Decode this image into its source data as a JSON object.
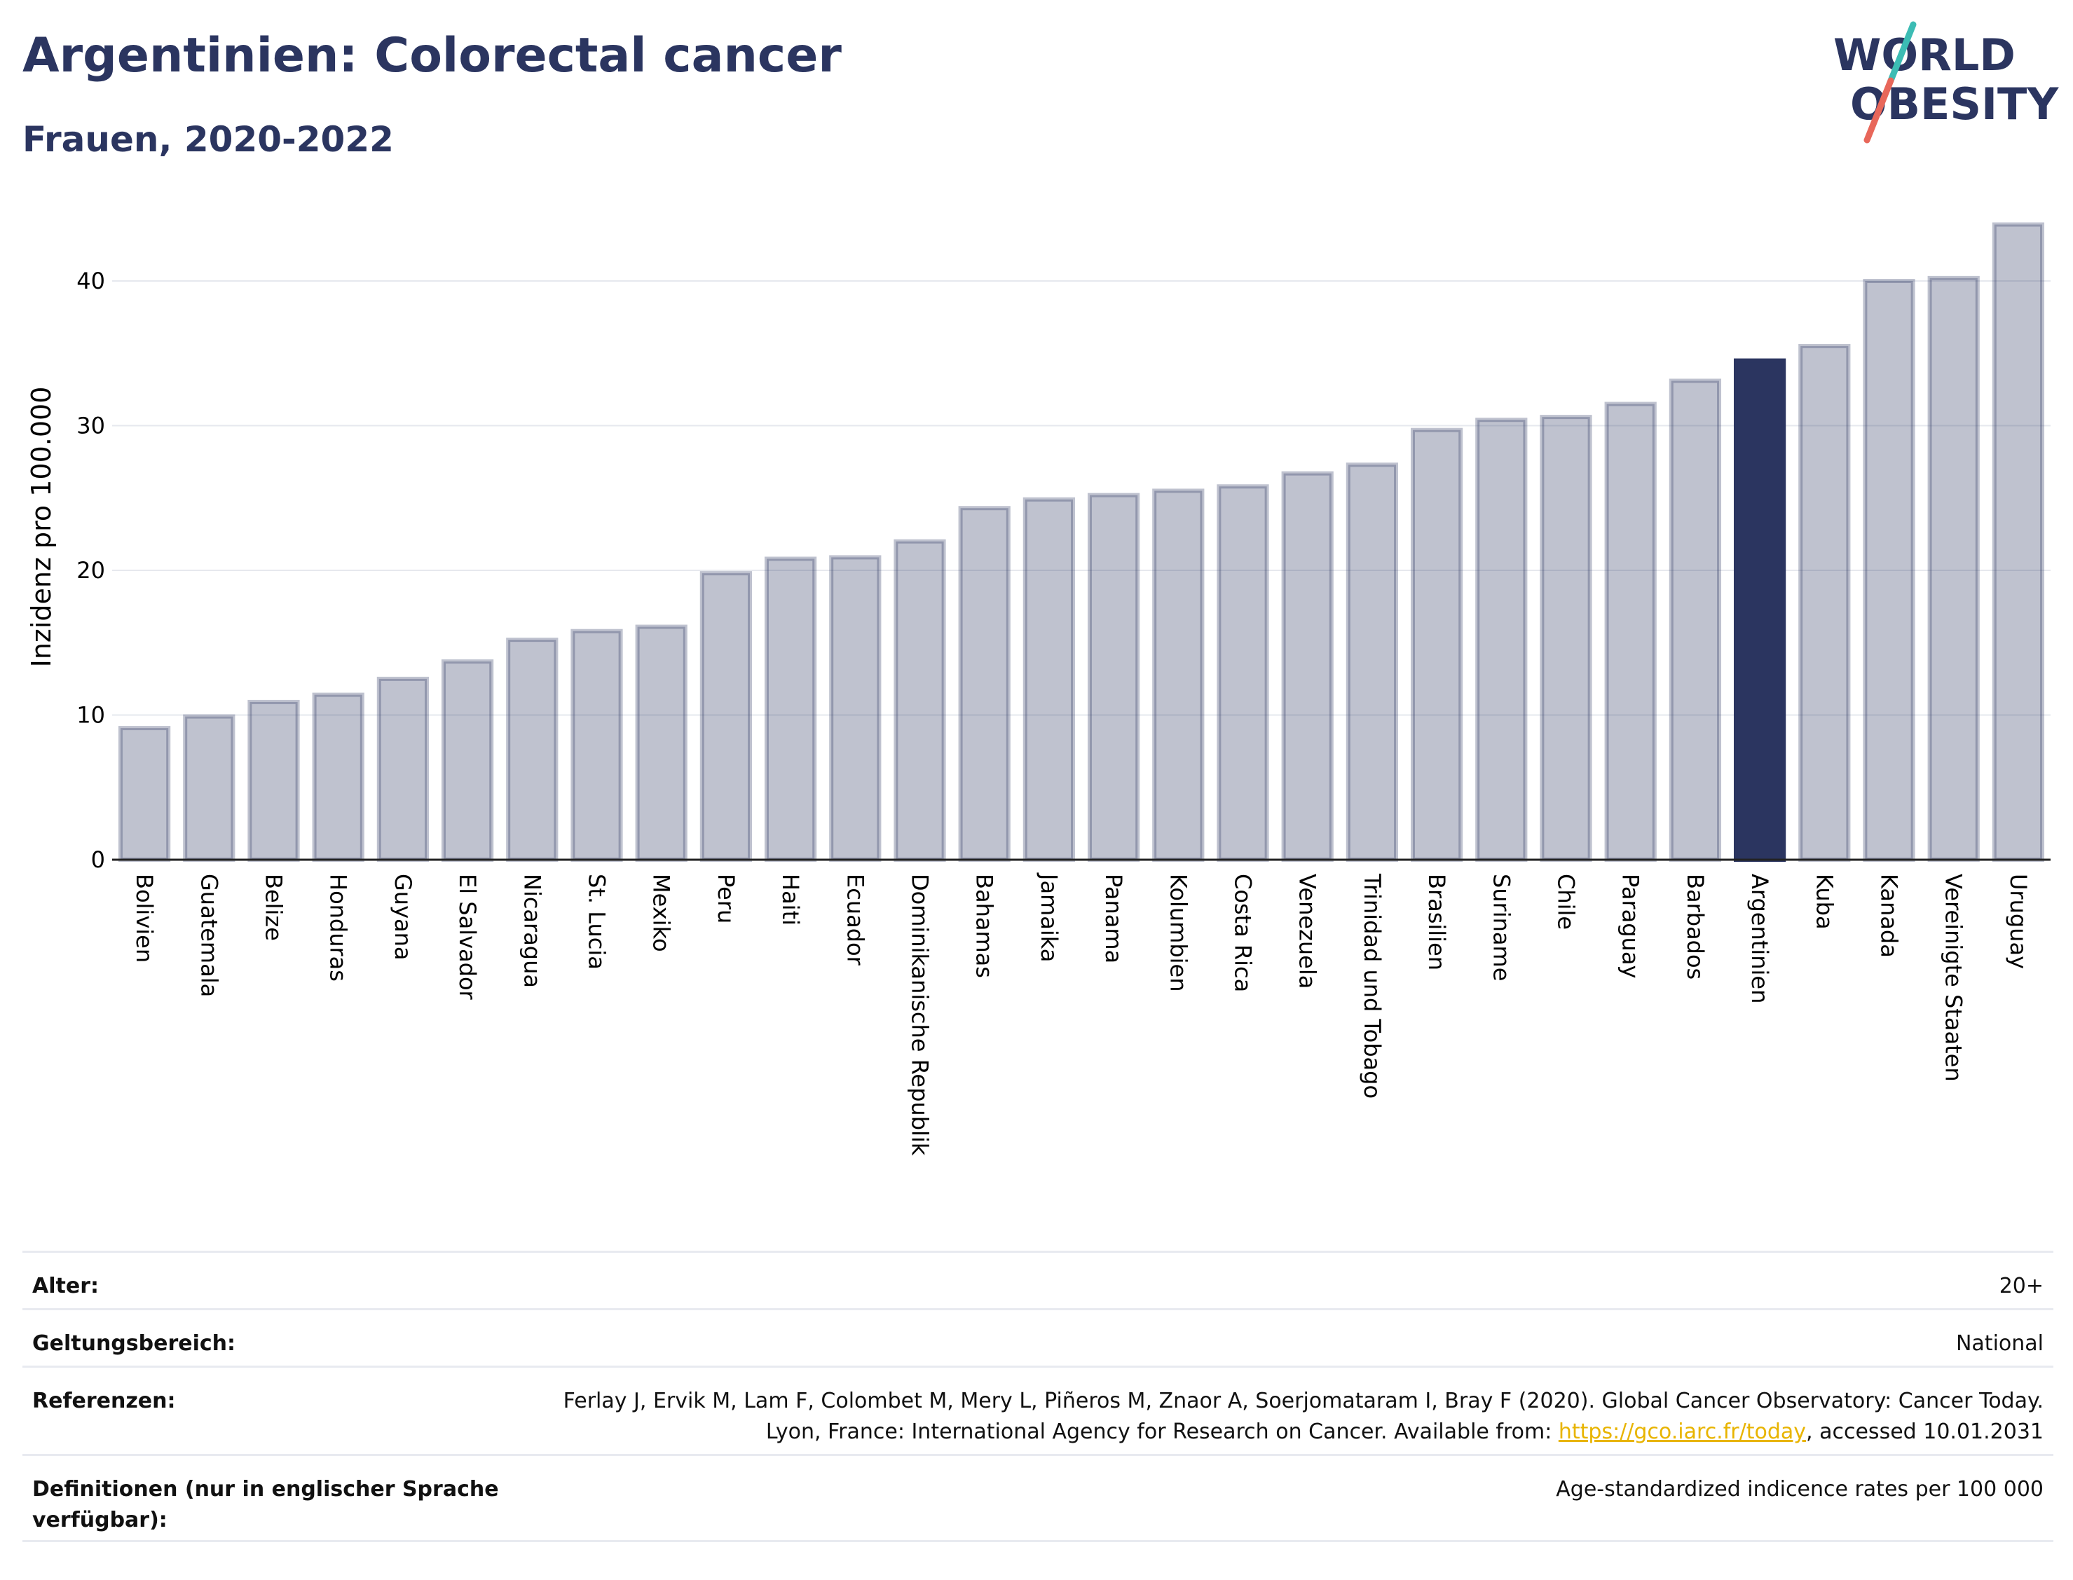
{
  "header": {
    "title": "Argentinien: Colorectal cancer",
    "subtitle": "Frauen, 2020-2022",
    "logo_line1": "WORLD",
    "logo_line2": "OBESITY"
  },
  "colors": {
    "bar": "#2b3560",
    "bar_highlight": "#2b3560",
    "logo_slash_teal": "#3cbcb4",
    "logo_slash_red": "#e8675a",
    "link": "#e8b400"
  },
  "chart_data": {
    "type": "bar",
    "title": "Argentinien: Colorectal cancer",
    "subtitle": "Frauen, 2020-2022",
    "ylabel": "Inzidenz pro 100.000",
    "xlabel": "",
    "ylim": [
      0,
      44
    ],
    "yticks": [
      0,
      10,
      20,
      30,
      40
    ],
    "grid": true,
    "highlight": "Argentinien",
    "categories": [
      "Bolivien",
      "Guatemala",
      "Belize",
      "Honduras",
      "Guyana",
      "El Salvador",
      "Nicaragua",
      "St. Lucia",
      "Mexiko",
      "Peru",
      "Haiti",
      "Ecuador",
      "Dominikanische Republik",
      "Bahamas",
      "Jamaika",
      "Panama",
      "Kolumbien",
      "Costa Rica",
      "Venezuela",
      "Trinidad und Tobago",
      "Brasilien",
      "Suriname",
      "Chile",
      "Paraguay",
      "Barbados",
      "Argentinien",
      "Kuba",
      "Kanada",
      "Vereinigte Staaten",
      "Uruguay"
    ],
    "values": [
      9.1,
      9.9,
      10.9,
      11.4,
      12.5,
      13.7,
      15.2,
      15.8,
      16.1,
      19.8,
      20.8,
      20.9,
      22.0,
      24.3,
      24.9,
      25.2,
      25.5,
      25.8,
      26.7,
      27.3,
      29.7,
      30.4,
      30.6,
      31.5,
      33.1,
      34.5,
      35.5,
      40.0,
      40.2,
      43.9
    ]
  },
  "meta": {
    "age_label": "Alter:",
    "age_value": "20+",
    "scope_label": "Geltungsbereich:",
    "scope_value": "National",
    "ref_label": "Referenzen:",
    "ref_text_1": "Ferlay J, Ervik M, Lam F, Colombet M, Mery L, Piñeros M, Znaor A, Soerjomataram I, Bray F (2020). Global Cancer Observatory: Cancer Today. Lyon, France: International Agency for Research on Cancer. Available from: ",
    "ref_link": "https://gco.iarc.fr/today",
    "ref_text_2": ", accessed 10.01.2031",
    "def_label": "Definitionen (nur in englischer Sprache verfügbar):",
    "def_value": "Age-standardized indicence rates per 100 000"
  }
}
